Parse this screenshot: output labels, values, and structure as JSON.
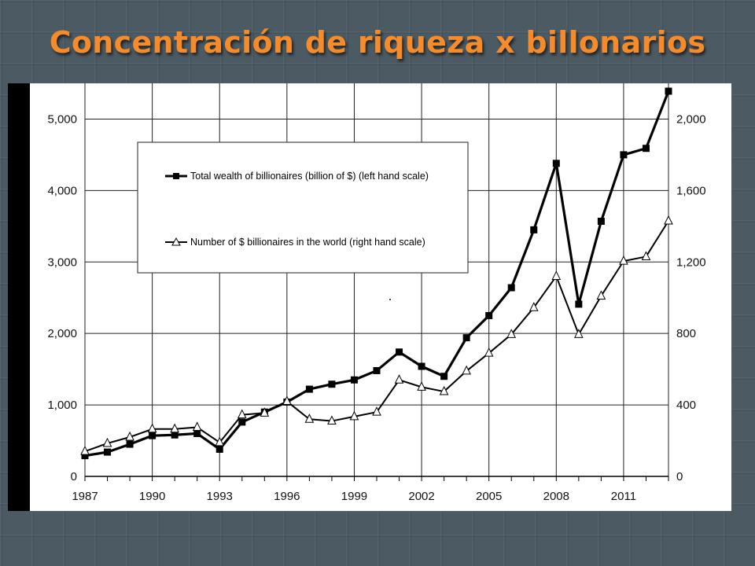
{
  "slide": {
    "title": "Concentración de riqueza x billonarios",
    "title_color": "#f58b2a",
    "background_color": "#4b5a63"
  },
  "chart_data": {
    "type": "line",
    "x": [
      1987,
      1988,
      1989,
      1990,
      1991,
      1992,
      1993,
      1994,
      1995,
      1996,
      1997,
      1998,
      1999,
      2000,
      2001,
      2002,
      2003,
      2004,
      2005,
      2006,
      2007,
      2008,
      2009,
      2010,
      2011,
      2012,
      2013
    ],
    "xticks": [
      "1987",
      "1990",
      "1993",
      "1996",
      "1999",
      "2002",
      "2005",
      "2008",
      "2011"
    ],
    "xlim": [
      1987,
      2013
    ],
    "y_left": {
      "ticks": [
        "0",
        "1,000",
        "2,000",
        "3,000",
        "4,000",
        "5,000"
      ],
      "ylim": [
        0,
        5500
      ]
    },
    "y_right": {
      "ticks": [
        "0",
        "400",
        "800",
        "1,200",
        "1,600",
        "2,000"
      ],
      "ylim": [
        0,
        2200
      ]
    },
    "series": [
      {
        "name": "Total wealth of billionaires (billion of $) (left hand scale)",
        "axis": "left",
        "marker": "square",
        "values": [
          290,
          340,
          450,
          570,
          580,
          600,
          380,
          760,
          900,
          1040,
          1220,
          1290,
          1350,
          1480,
          1740,
          1540,
          1400,
          1940,
          2250,
          2640,
          3450,
          4380,
          2410,
          3570,
          4500,
          4590,
          5390
        ]
      },
      {
        "name": "Number of $ billionaires in the world (right hand scale)",
        "axis": "right",
        "marker": "triangle",
        "values": [
          140,
          185,
          220,
          265,
          265,
          275,
          190,
          345,
          355,
          420,
          320,
          310,
          335,
          360,
          540,
          500,
          475,
          590,
          690,
          795,
          945,
          1120,
          795,
          1010,
          1205,
          1230,
          1430
        ]
      }
    ],
    "grid": true,
    "legend_position": "top-left inside"
  }
}
